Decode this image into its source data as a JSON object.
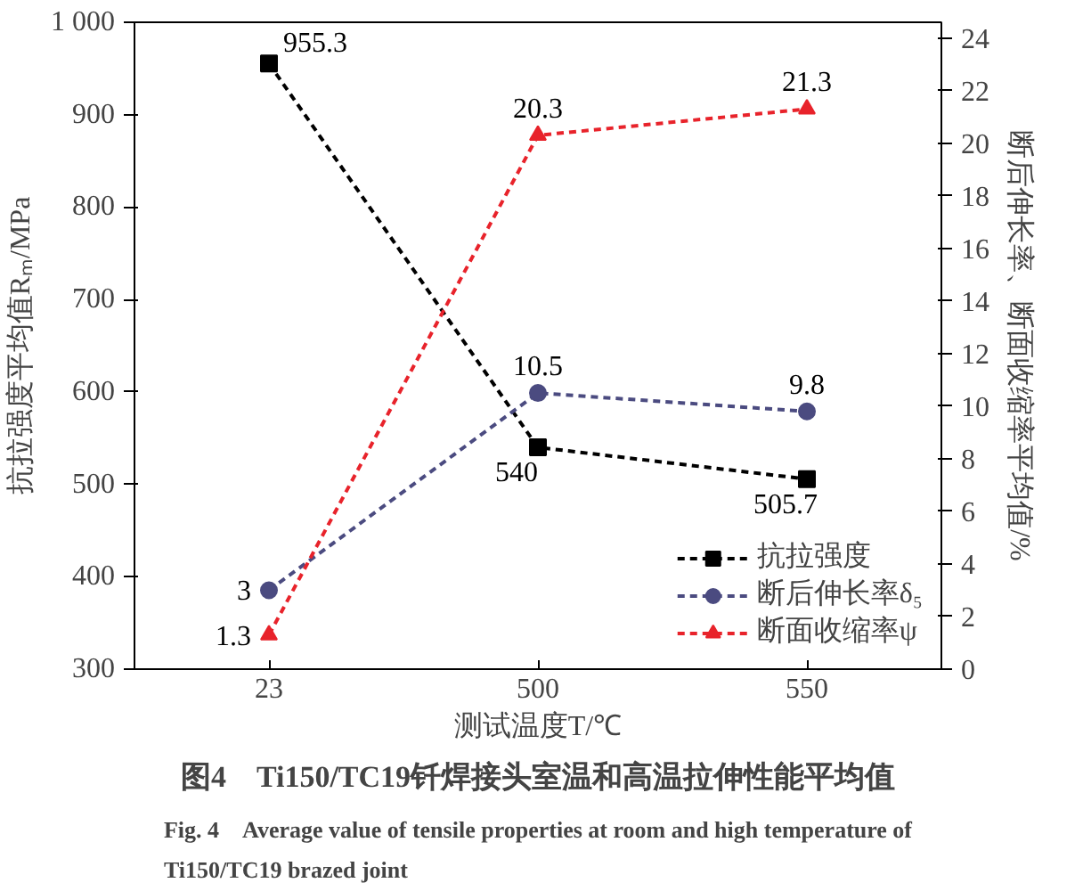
{
  "chart_data": {
    "type": "line",
    "title": "图4　Ti150/TC19钎焊接头室温和高温拉伸性能平均值",
    "subtitle": "Fig. 4　Average value of tensile properties at room and high temperature of Ti150/TC19 brazed joint",
    "xlabel": "测试温度T/℃",
    "ylabel": "抗拉强度平均值Rₘ/MPa",
    "y2label": "断后伸长率、断面收缩率平均值/%",
    "categories": [
      "23",
      "500",
      "550"
    ],
    "series": [
      {
        "name": "抗拉强度",
        "color": "#000000",
        "values": [
          955.3,
          540,
          505.7
        ],
        "marker": "square"
      },
      {
        "name": "断后伸长率δ₅",
        "color": "#4b4b80",
        "values": [
          3,
          10.5,
          9.8
        ],
        "axis": "y2",
        "marker": "circle"
      },
      {
        "name": "断面收缩率ψ",
        "color": "#e8232b",
        "values": [
          1.3,
          20.3,
          21.3
        ],
        "axis": "y2",
        "marker": "triangle"
      }
    ],
    "ylim": [
      300,
      1000
    ],
    "yticks": [
      300,
      400,
      500,
      600,
      700,
      800,
      900,
      {
        "value": 1000,
        "label": "1 000"
      }
    ],
    "y2lim": [
      0,
      24.6
    ],
    "y2ticks": [
      0,
      2,
      4,
      6,
      8,
      10,
      12,
      14,
      16,
      18,
      20,
      22,
      24
    ],
    "data_labels": true,
    "legend": "bottom right",
    "grid": false,
    "line_style": "dashed"
  }
}
